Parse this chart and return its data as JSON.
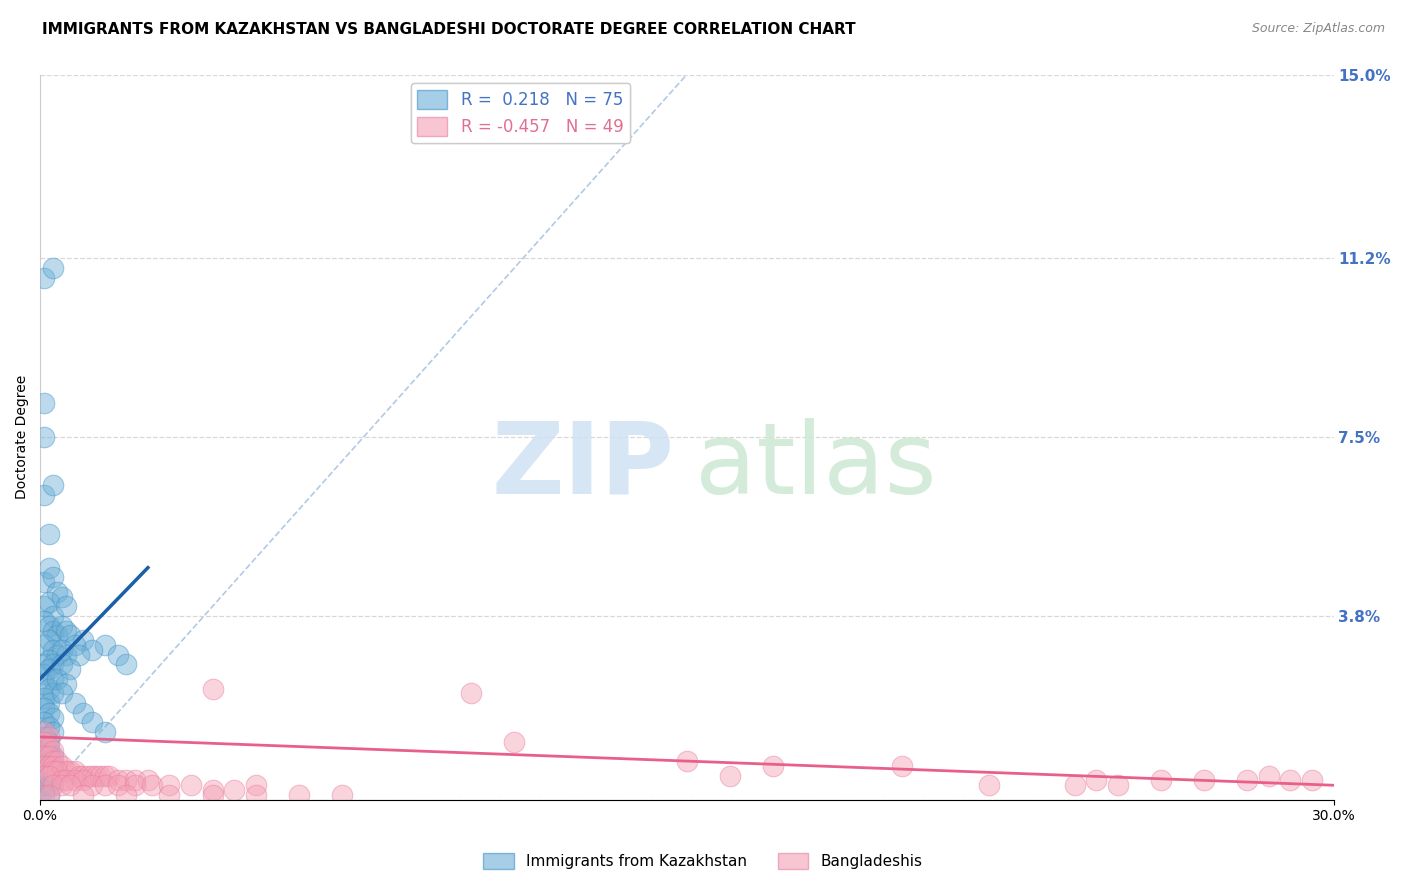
{
  "title": "IMMIGRANTS FROM KAZAKHSTAN VS BANGLADESHI DOCTORATE DEGREE CORRELATION CHART",
  "source": "Source: ZipAtlas.com",
  "ylabel": "Doctorate Degree",
  "xlim": [
    0.0,
    0.3
  ],
  "ylim": [
    0.0,
    0.15
  ],
  "right_yticks": [
    0.0,
    0.038,
    0.075,
    0.112,
    0.15
  ],
  "right_ytick_labels": [
    "",
    "3.8%",
    "7.5%",
    "11.2%",
    "15.0%"
  ],
  "blue_color": "#6baed6",
  "pink_color": "#f4a0b5",
  "blue_edge_color": "#4292c6",
  "pink_edge_color": "#e87da0",
  "blue_trend_color": "#1a5fa8",
  "pink_trend_color": "#e8608a",
  "diag_line_color": "#aac4e0",
  "grid_color": "#d8d8d8",
  "background_color": "#ffffff",
  "title_fontsize": 11,
  "axis_label_fontsize": 10,
  "tick_fontsize": 10,
  "right_tick_color": "#4472c4",
  "blue_scatter": [
    [
      0.001,
      0.108
    ],
    [
      0.003,
      0.11
    ],
    [
      0.001,
      0.082
    ],
    [
      0.001,
      0.075
    ],
    [
      0.001,
      0.063
    ],
    [
      0.002,
      0.055
    ],
    [
      0.003,
      0.065
    ],
    [
      0.001,
      0.045
    ],
    [
      0.002,
      0.048
    ],
    [
      0.003,
      0.046
    ],
    [
      0.004,
      0.043
    ],
    [
      0.001,
      0.04
    ],
    [
      0.002,
      0.041
    ],
    [
      0.003,
      0.038
    ],
    [
      0.005,
      0.042
    ],
    [
      0.006,
      0.04
    ],
    [
      0.001,
      0.037
    ],
    [
      0.002,
      0.036
    ],
    [
      0.003,
      0.035
    ],
    [
      0.004,
      0.034
    ],
    [
      0.005,
      0.036
    ],
    [
      0.006,
      0.035
    ],
    [
      0.007,
      0.034
    ],
    [
      0.001,
      0.032
    ],
    [
      0.002,
      0.033
    ],
    [
      0.003,
      0.031
    ],
    [
      0.004,
      0.03
    ],
    [
      0.005,
      0.031
    ],
    [
      0.006,
      0.03
    ],
    [
      0.001,
      0.028
    ],
    [
      0.002,
      0.029
    ],
    [
      0.003,
      0.028
    ],
    [
      0.001,
      0.026
    ],
    [
      0.002,
      0.027
    ],
    [
      0.003,
      0.025
    ],
    [
      0.001,
      0.024
    ],
    [
      0.002,
      0.023
    ],
    [
      0.003,
      0.022
    ],
    [
      0.001,
      0.021
    ],
    [
      0.002,
      0.02
    ],
    [
      0.001,
      0.019
    ],
    [
      0.002,
      0.018
    ],
    [
      0.003,
      0.017
    ],
    [
      0.001,
      0.016
    ],
    [
      0.002,
      0.015
    ],
    [
      0.003,
      0.014
    ],
    [
      0.001,
      0.013
    ],
    [
      0.002,
      0.012
    ],
    [
      0.001,
      0.011
    ],
    [
      0.002,
      0.01
    ],
    [
      0.003,
      0.009
    ],
    [
      0.001,
      0.008
    ],
    [
      0.002,
      0.007
    ],
    [
      0.001,
      0.006
    ],
    [
      0.002,
      0.005
    ],
    [
      0.003,
      0.004
    ],
    [
      0.001,
      0.003
    ],
    [
      0.002,
      0.003
    ],
    [
      0.001,
      0.002
    ],
    [
      0.002,
      0.001
    ],
    [
      0.015,
      0.032
    ],
    [
      0.018,
      0.03
    ],
    [
      0.02,
      0.028
    ],
    [
      0.01,
      0.033
    ],
    [
      0.012,
      0.031
    ],
    [
      0.008,
      0.032
    ],
    [
      0.009,
      0.03
    ],
    [
      0.005,
      0.028
    ],
    [
      0.007,
      0.027
    ],
    [
      0.004,
      0.025
    ],
    [
      0.006,
      0.024
    ],
    [
      0.005,
      0.022
    ],
    [
      0.008,
      0.02
    ],
    [
      0.01,
      0.018
    ],
    [
      0.012,
      0.016
    ],
    [
      0.015,
      0.014
    ]
  ],
  "pink_scatter": [
    [
      0.001,
      0.014
    ],
    [
      0.002,
      0.013
    ],
    [
      0.001,
      0.012
    ],
    [
      0.002,
      0.011
    ],
    [
      0.003,
      0.01
    ],
    [
      0.001,
      0.009
    ],
    [
      0.002,
      0.009
    ],
    [
      0.003,
      0.008
    ],
    [
      0.004,
      0.008
    ],
    [
      0.001,
      0.007
    ],
    [
      0.002,
      0.007
    ],
    [
      0.003,
      0.007
    ],
    [
      0.005,
      0.007
    ],
    [
      0.006,
      0.006
    ],
    [
      0.007,
      0.006
    ],
    [
      0.008,
      0.006
    ],
    [
      0.003,
      0.006
    ],
    [
      0.004,
      0.006
    ],
    [
      0.001,
      0.005
    ],
    [
      0.002,
      0.005
    ],
    [
      0.009,
      0.005
    ],
    [
      0.01,
      0.005
    ],
    [
      0.011,
      0.005
    ],
    [
      0.012,
      0.005
    ],
    [
      0.013,
      0.005
    ],
    [
      0.014,
      0.005
    ],
    [
      0.015,
      0.005
    ],
    [
      0.016,
      0.005
    ],
    [
      0.005,
      0.004
    ],
    [
      0.006,
      0.004
    ],
    [
      0.008,
      0.004
    ],
    [
      0.01,
      0.004
    ],
    [
      0.018,
      0.004
    ],
    [
      0.02,
      0.004
    ],
    [
      0.022,
      0.004
    ],
    [
      0.025,
      0.004
    ],
    [
      0.003,
      0.003
    ],
    [
      0.005,
      0.003
    ],
    [
      0.007,
      0.003
    ],
    [
      0.012,
      0.003
    ],
    [
      0.015,
      0.003
    ],
    [
      0.018,
      0.003
    ],
    [
      0.022,
      0.003
    ],
    [
      0.026,
      0.003
    ],
    [
      0.03,
      0.003
    ],
    [
      0.035,
      0.003
    ],
    [
      0.04,
      0.002
    ],
    [
      0.045,
      0.002
    ],
    [
      0.05,
      0.003
    ],
    [
      0.04,
      0.023
    ],
    [
      0.1,
      0.022
    ],
    [
      0.11,
      0.012
    ],
    [
      0.15,
      0.008
    ],
    [
      0.16,
      0.005
    ],
    [
      0.17,
      0.007
    ],
    [
      0.2,
      0.007
    ],
    [
      0.22,
      0.003
    ],
    [
      0.24,
      0.003
    ],
    [
      0.245,
      0.004
    ],
    [
      0.25,
      0.003
    ],
    [
      0.26,
      0.004
    ],
    [
      0.27,
      0.004
    ],
    [
      0.28,
      0.004
    ],
    [
      0.285,
      0.005
    ],
    [
      0.29,
      0.004
    ],
    [
      0.295,
      0.004
    ],
    [
      0.01,
      0.001
    ],
    [
      0.02,
      0.001
    ],
    [
      0.03,
      0.001
    ],
    [
      0.04,
      0.001
    ],
    [
      0.05,
      0.001
    ],
    [
      0.06,
      0.001
    ],
    [
      0.07,
      0.001
    ],
    [
      0.001,
      0.001
    ],
    [
      0.002,
      0.001
    ]
  ],
  "blue_trend_x": [
    0.0,
    0.025
  ],
  "blue_trend_y": [
    0.025,
    0.048
  ],
  "pink_trend_x": [
    0.0,
    0.3
  ],
  "pink_trend_y": [
    0.013,
    0.003
  ]
}
